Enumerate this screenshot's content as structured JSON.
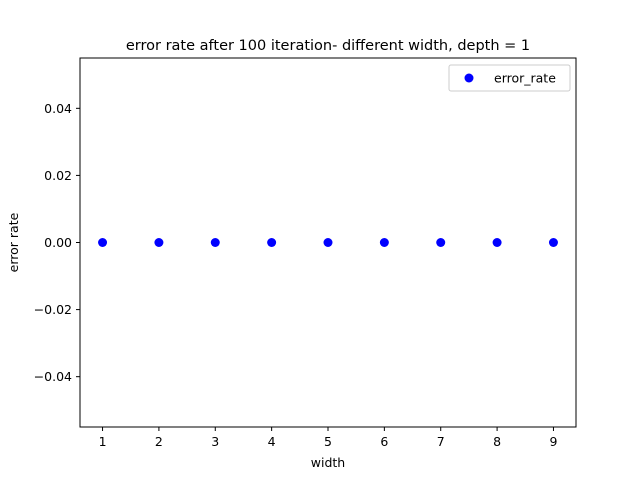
{
  "chart_data": {
    "type": "scatter",
    "title": "error rate after 100 iteration- different width, depth = 1",
    "xlabel": "width",
    "ylabel": "error rate",
    "xlim": [
      0.6,
      9.4
    ],
    "ylim": [
      -0.055,
      0.055
    ],
    "x_ticks": [
      1,
      2,
      3,
      4,
      5,
      6,
      7,
      8,
      9
    ],
    "x_tick_labels": [
      "1",
      "2",
      "3",
      "4",
      "5",
      "6",
      "7",
      "8",
      "9"
    ],
    "y_ticks": [
      -0.04,
      -0.02,
      0.0,
      0.02,
      0.04
    ],
    "y_tick_labels": [
      "−0.04",
      "−0.02",
      "0.00",
      "0.02",
      "0.04"
    ],
    "grid": false,
    "legend_position": "top-right",
    "series": [
      {
        "name": "error_rate",
        "color": "#0000ff",
        "marker": "circle",
        "x": [
          1,
          2,
          3,
          4,
          5,
          6,
          7,
          8,
          9
        ],
        "y": [
          0,
          0,
          0,
          0,
          0,
          0,
          0,
          0,
          0
        ]
      }
    ]
  }
}
